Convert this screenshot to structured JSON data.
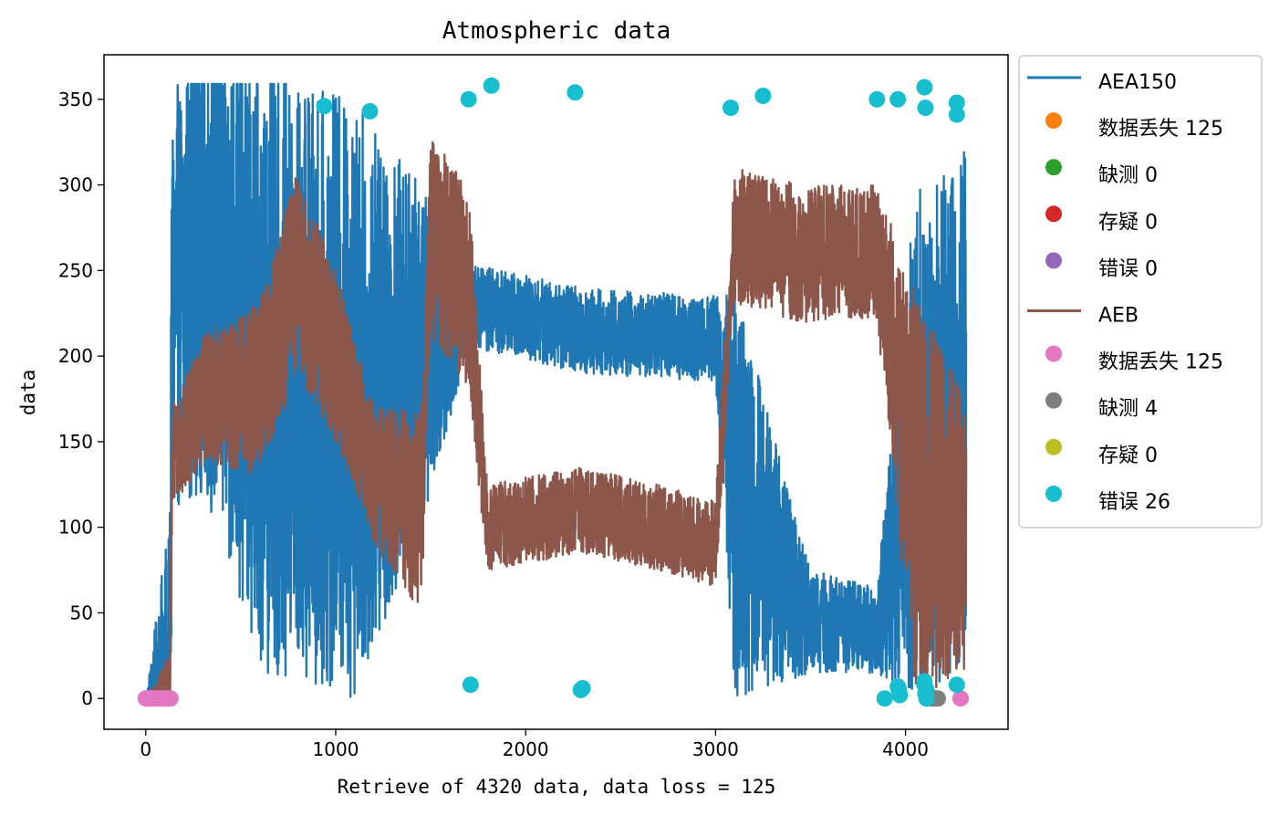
{
  "chart_data": {
    "type": "line",
    "title": "Atmospheric data",
    "xlabel": "Retrieve of 4320 data, data loss = 125",
    "ylabel": "data",
    "xlim": [
      -220,
      4540
    ],
    "ylim": [
      -18,
      376
    ],
    "xticks": [
      0,
      1000,
      2000,
      3000,
      4000
    ],
    "yticks": [
      0,
      50,
      100,
      150,
      200,
      250,
      300,
      350
    ],
    "grid": false,
    "legend_position": "outside-right",
    "n_points": 4320,
    "series": [
      {
        "name": "AEA150",
        "color": "#1f77b4",
        "kind": "line",
        "profile": [
          [
            0,
            0
          ],
          [
            125,
            0
          ],
          [
            140,
            230
          ],
          [
            300,
            260
          ],
          [
            640,
            190
          ],
          [
            1100,
            175
          ],
          [
            1450,
            200
          ],
          [
            1700,
            230
          ],
          [
            2300,
            215
          ],
          [
            3000,
            210
          ],
          [
            3100,
            120
          ],
          [
            3500,
            45
          ],
          [
            3850,
            40
          ],
          [
            4050,
            150
          ],
          [
            4320,
            170
          ]
        ],
        "spread": [
          [
            0,
            0
          ],
          [
            140,
            120
          ],
          [
            600,
            175
          ],
          [
            1100,
            175
          ],
          [
            1450,
            100
          ],
          [
            1700,
            25
          ],
          [
            3000,
            25
          ],
          [
            3100,
            120
          ],
          [
            3500,
            30
          ],
          [
            3850,
            25
          ],
          [
            4050,
            150
          ],
          [
            4320,
            150
          ]
        ]
      },
      {
        "name": "AEB",
        "color": "#8c564b",
        "kind": "line",
        "profile": [
          [
            0,
            0
          ],
          [
            125,
            0
          ],
          [
            140,
            140
          ],
          [
            300,
            175
          ],
          [
            600,
            180
          ],
          [
            800,
            250
          ],
          [
            1000,
            200
          ],
          [
            1200,
            130
          ],
          [
            1450,
            110
          ],
          [
            1500,
            270
          ],
          [
            1700,
            240
          ],
          [
            1800,
            100
          ],
          [
            2300,
            110
          ],
          [
            2700,
            100
          ],
          [
            3000,
            90
          ],
          [
            3100,
            270
          ],
          [
            3450,
            260
          ],
          [
            3850,
            260
          ],
          [
            4050,
            120
          ],
          [
            4320,
            95
          ]
        ],
        "spread": [
          [
            0,
            0
          ],
          [
            140,
            30
          ],
          [
            800,
            60
          ],
          [
            1200,
            40
          ],
          [
            1450,
            60
          ],
          [
            1700,
            60
          ],
          [
            1800,
            25
          ],
          [
            3000,
            25
          ],
          [
            3100,
            40
          ],
          [
            3850,
            40
          ],
          [
            4050,
            120
          ],
          [
            4320,
            80
          ]
        ]
      }
    ],
    "markers": [
      {
        "name": "数据丢失 125",
        "series": "AEA150",
        "color": "#ff7f0e",
        "points": []
      },
      {
        "name": "缺测 0",
        "series": "AEA150",
        "color": "#2ca02c",
        "points": []
      },
      {
        "name": "存疑 0",
        "series": "AEA150",
        "color": "#d62728",
        "points": []
      },
      {
        "name": "错误 0",
        "series": "AEA150",
        "color": "#9467bd",
        "points": []
      },
      {
        "name": "数据丢失 125",
        "series": "AEB",
        "color": "#e377c2",
        "points": [
          [
            0,
            0
          ],
          [
            10,
            0
          ],
          [
            20,
            0
          ],
          [
            30,
            0
          ],
          [
            40,
            0
          ],
          [
            50,
            0
          ],
          [
            60,
            0
          ],
          [
            70,
            0
          ],
          [
            80,
            0
          ],
          [
            90,
            0
          ],
          [
            100,
            0
          ],
          [
            110,
            0
          ],
          [
            120,
            0
          ],
          [
            130,
            0
          ],
          [
            4290,
            0
          ]
        ]
      },
      {
        "name": "缺测 4",
        "series": "AEB",
        "color": "#7f7f7f",
        "points": [
          [
            4140,
            0
          ],
          [
            4150,
            0
          ],
          [
            4160,
            0
          ],
          [
            4170,
            0
          ]
        ]
      },
      {
        "name": "存疑 0",
        "series": "AEB",
        "color": "#bcbd22",
        "points": []
      },
      {
        "name": "错误 26",
        "series": "AEB",
        "color": "#17becf",
        "points": [
          [
            940,
            346
          ],
          [
            1180,
            343
          ],
          [
            1700,
            350
          ],
          [
            1710,
            8
          ],
          [
            1820,
            358
          ],
          [
            2260,
            354
          ],
          [
            2290,
            5
          ],
          [
            2300,
            6
          ],
          [
            3080,
            345
          ],
          [
            3250,
            352
          ],
          [
            3850,
            350
          ],
          [
            3890,
            0
          ],
          [
            3960,
            350
          ],
          [
            3960,
            7
          ],
          [
            3970,
            2
          ],
          [
            4100,
            357
          ],
          [
            4105,
            345
          ],
          [
            4100,
            8
          ],
          [
            4105,
            3
          ],
          [
            4110,
            0
          ],
          [
            4110,
            5
          ],
          [
            4270,
            348
          ],
          [
            4270,
            341
          ],
          [
            4270,
            8
          ],
          [
            4100,
            10
          ],
          [
            3965,
            5
          ]
        ]
      }
    ]
  },
  "legend": [
    {
      "type": "line",
      "label": "AEA150",
      "color": "#1f77b4"
    },
    {
      "type": "dot",
      "label": "数据丢失 125",
      "color": "#ff7f0e"
    },
    {
      "type": "dot",
      "label": "缺测 0",
      "color": "#2ca02c"
    },
    {
      "type": "dot",
      "label": "存疑 0",
      "color": "#d62728"
    },
    {
      "type": "dot",
      "label": "错误 0",
      "color": "#9467bd"
    },
    {
      "type": "line",
      "label": "AEB",
      "color": "#8c564b"
    },
    {
      "type": "dot",
      "label": "数据丢失 125",
      "color": "#e377c2"
    },
    {
      "type": "dot",
      "label": "缺测 4",
      "color": "#7f7f7f"
    },
    {
      "type": "dot",
      "label": "存疑 0",
      "color": "#bcbd22"
    },
    {
      "type": "dot",
      "label": "错误 26",
      "color": "#17becf"
    }
  ]
}
